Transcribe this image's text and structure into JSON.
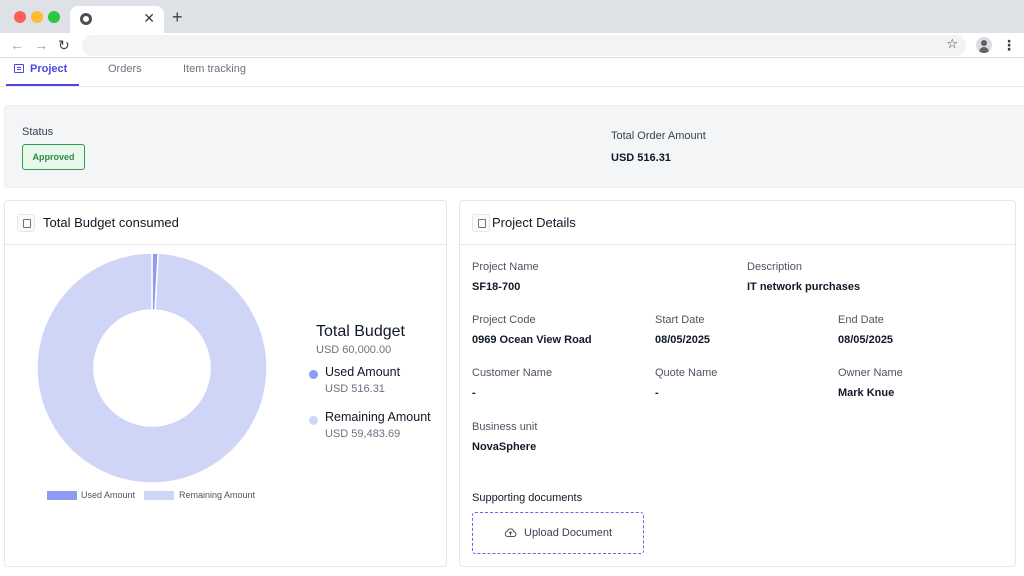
{
  "browser": {
    "close_glyph": "✕",
    "new_tab_glyph": "+",
    "back_glyph": "←",
    "forward_glyph": "→",
    "reload_glyph": "↻",
    "star_glyph": "☆",
    "menu_glyph": "⋮"
  },
  "tabs": {
    "project": "Project",
    "orders": "Orders",
    "item_tracking": "Item tracking"
  },
  "status": {
    "label": "Status",
    "badge": "Approved",
    "total_order_label": "Total Order Amount",
    "total_order_value": "USD 516.31"
  },
  "budget": {
    "title": "Total Budget consumed",
    "total_title": "Total Budget",
    "total_value": "USD 60,000.00",
    "used_label": "Used Amount",
    "used_value": "USD 516.31",
    "remaining_label": "Remaining Amount",
    "remaining_value": "USD 59,483.69",
    "legend_used": "Used Amount",
    "legend_remaining": "Remaining Amount"
  },
  "chart_data": {
    "type": "pie",
    "title": "Total Budget consumed",
    "categories": [
      "Used Amount",
      "Remaining Amount"
    ],
    "values": [
      516.31,
      59483.69
    ],
    "total": 60000.0,
    "colors": [
      "#8d9cf2",
      "#cfd5f7"
    ],
    "legend_position": "bottom"
  },
  "details": {
    "title": "Project Details",
    "project_name_label": "Project Name",
    "project_name": "SF18-700",
    "description_label": "Description",
    "description": "IT network purchases",
    "project_code_label": "Project Code",
    "project_code": "0969 Ocean View Road",
    "start_date_label": "Start Date",
    "start_date": "08/05/2025",
    "end_date_label": "End Date",
    "end_date": "08/05/2025",
    "customer_name_label": "Customer Name",
    "customer_name": "-",
    "quote_name_label": "Quote Name",
    "quote_name": "-",
    "owner_name_label": "Owner Name",
    "owner_name": "Mark Knue",
    "business_unit_label": "Business unit",
    "business_unit": "NovaSphere",
    "supporting_docs_label": "Supporting documents",
    "upload_label": "Upload Document"
  }
}
